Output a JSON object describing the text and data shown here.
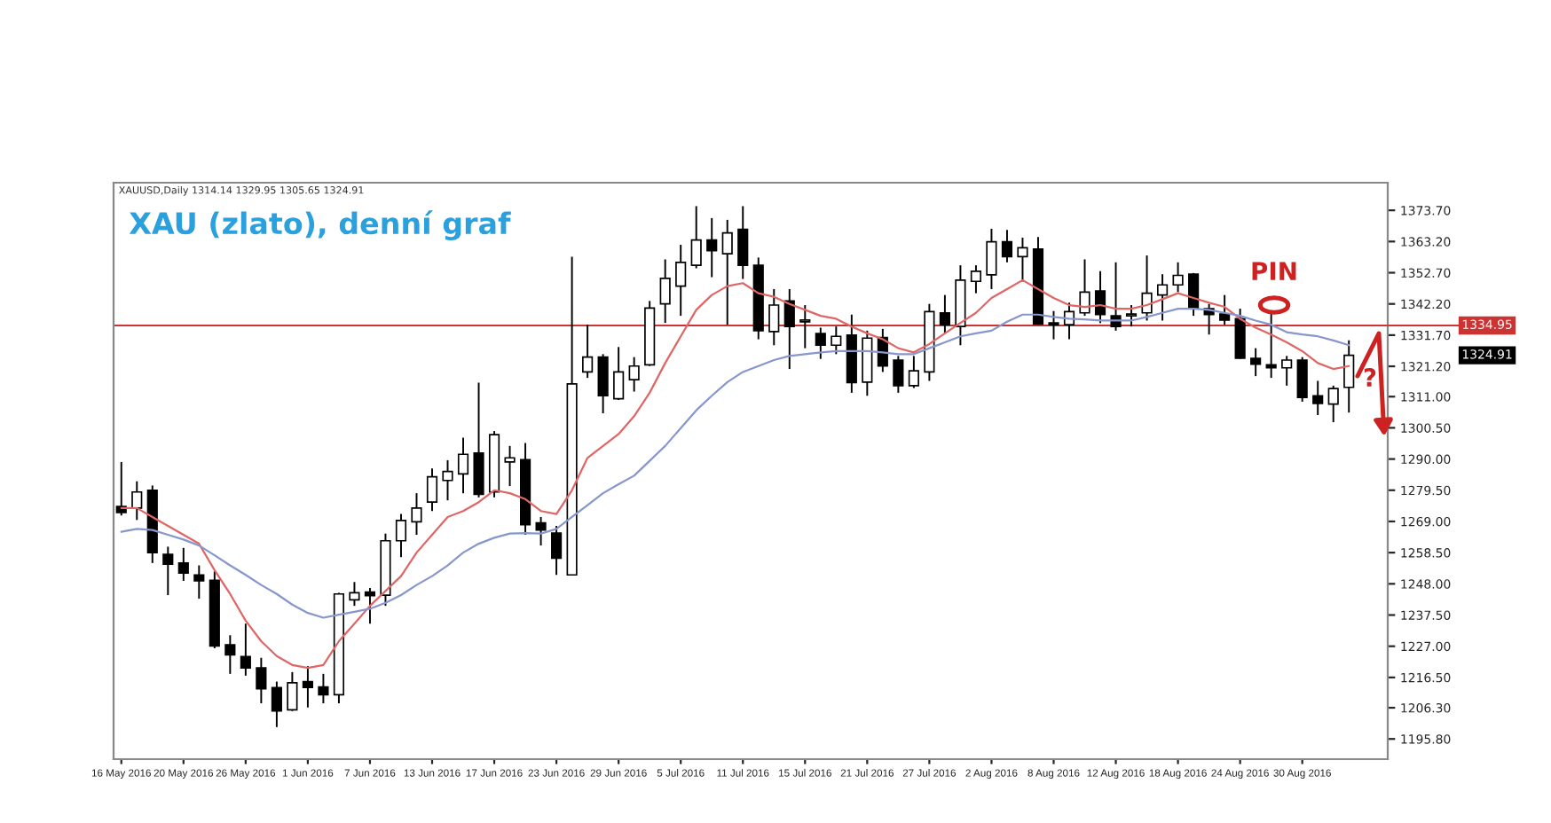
{
  "chart_data": {
    "type": "candlestick",
    "title": "XAU (zlato), denní graf",
    "annotations": [
      "XAUUSD,Daily 1314.14 1329.95 1305.65 1324.91",
      "PIN",
      "?",
      "1324.91"
    ],
    "categories": [
      "16 May 2016",
      null,
      null,
      null,
      "20 May 2016",
      null,
      null,
      null,
      "26 May 2016",
      null,
      null,
      null,
      "1 Jun 2016",
      null,
      null,
      null,
      "7 Jun 2016",
      null,
      null,
      null,
      "13 Jun 2016",
      null,
      null,
      null,
      "17 Jun 2016",
      null,
      null,
      null,
      "23 Jun 2016",
      null,
      null,
      null,
      "29 Jun 2016",
      null,
      null,
      null,
      "5 Jul 2016",
      null,
      null,
      null,
      "11 Jul 2016",
      null,
      null,
      null,
      "15 Jul 2016",
      null,
      null,
      null,
      "21 Jul 2016",
      null,
      null,
      null,
      "27 Jul 2016",
      null,
      null,
      null,
      "2 Aug 2016",
      null,
      null,
      null,
      "8 Aug 2016",
      null,
      null,
      null,
      "12 Aug 2016",
      null,
      null,
      null,
      "18 Aug 2016",
      null,
      null,
      null,
      "24 Aug 2016",
      null,
      null,
      null,
      "30 Aug 2016",
      null,
      null,
      null
    ],
    "ohlc": [
      [
        1274,
        1289,
        1271,
        1272
      ],
      [
        1273.5,
        1282.5,
        1269.5,
        1278.9
      ],
      [
        1279.5,
        1281.1,
        1255.0,
        1258.5
      ],
      [
        1257.9,
        1260.5,
        1244.2,
        1254.6
      ],
      [
        1255.0,
        1260.1,
        1249.0,
        1251.6
      ],
      [
        1251.0,
        1254.2,
        1243.0,
        1249.0
      ],
      [
        1249.2,
        1252.2,
        1226.3,
        1227.1
      ],
      [
        1227.5,
        1230.7,
        1217.7,
        1224.1
      ],
      [
        1223.5,
        1234.6,
        1217.1,
        1219.7
      ],
      [
        1219.7,
        1223.1,
        1207.8,
        1212.7
      ],
      [
        1213.1,
        1215.1,
        1199.8,
        1205.2
      ],
      [
        1205.6,
        1218.3,
        1205.2,
        1214.7
      ],
      [
        1215.1,
        1220.3,
        1206.4,
        1213.1
      ],
      [
        1213.3,
        1217.7,
        1207.8,
        1210.7
      ],
      [
        1210.7,
        1245.0,
        1207.8,
        1244.6
      ],
      [
        1242.6,
        1248.6,
        1240.6,
        1245.0
      ],
      [
        1245.2,
        1246.6,
        1234.6,
        1244.0
      ],
      [
        1244.2,
        1264.9,
        1240.6,
        1262.5
      ],
      [
        1262.5,
        1271.5,
        1257.0,
        1269.3
      ],
      [
        1268.9,
        1278.5,
        1264.5,
        1273.5
      ],
      [
        1275.5,
        1286.8,
        1272.5,
        1284.0
      ],
      [
        1282.8,
        1289.6,
        1276.1,
        1285.8
      ],
      [
        1285.0,
        1297.2,
        1278.5,
        1291.6
      ],
      [
        1292.0,
        1315.7,
        1277.1,
        1278.1
      ],
      [
        1278.9,
        1299.4,
        1277.1,
        1298.2
      ],
      [
        1289.0,
        1294.4,
        1280.9,
        1290.4
      ],
      [
        1289.8,
        1295.4,
        1264.5,
        1267.9
      ],
      [
        1268.5,
        1270.5,
        1260.9,
        1266.1
      ],
      [
        1265.1,
        1267.5,
        1251.0,
        1256.6
      ],
      [
        1251.0,
        1358.1,
        1251.0,
        1315.3
      ],
      [
        1319.3,
        1335.2,
        1317.3,
        1324.3
      ],
      [
        1324.3,
        1325.3,
        1305.4,
        1311.3
      ],
      [
        1310.3,
        1327.7,
        1309.9,
        1319.3
      ],
      [
        1316.7,
        1324.3,
        1312.7,
        1321.3
      ],
      [
        1321.7,
        1343.2,
        1321.3,
        1340.8
      ],
      [
        1342.2,
        1357.2,
        1335.8,
        1350.8
      ],
      [
        1348.2,
        1362.1,
        1338.2,
        1356.2
      ],
      [
        1355.2,
        1375.1,
        1354.2,
        1363.7
      ],
      [
        1363.7,
        1371.1,
        1351.2,
        1360.1
      ],
      [
        1359.1,
        1370.5,
        1335.2,
        1366.1
      ],
      [
        1367.3,
        1375.1,
        1350.6,
        1355.2
      ],
      [
        1355.2,
        1357.8,
        1330.3,
        1333.2
      ],
      [
        1332.9,
        1347.2,
        1328.3,
        1341.8
      ],
      [
        1343.2,
        1347.2,
        1320.3,
        1334.6
      ],
      [
        1336.2,
        1341.8,
        1327.3,
        1336.8
      ],
      [
        1332.2,
        1334.2,
        1323.7,
        1328.3
      ],
      [
        1328.3,
        1334.6,
        1325.3,
        1331.3
      ],
      [
        1331.7,
        1338.6,
        1312.3,
        1315.7
      ],
      [
        1315.9,
        1333.2,
        1311.3,
        1330.7
      ],
      [
        1330.9,
        1333.8,
        1319.3,
        1321.3
      ],
      [
        1323.3,
        1324.7,
        1312.3,
        1314.7
      ],
      [
        1314.7,
        1324.7,
        1313.9,
        1319.7
      ],
      [
        1319.3,
        1342.2,
        1316.3,
        1339.6
      ],
      [
        1339.2,
        1345.2,
        1332.2,
        1335.2
      ],
      [
        1334.6,
        1355.2,
        1328.3,
        1350.2
      ],
      [
        1349.8,
        1355.2,
        1345.8,
        1353.2
      ],
      [
        1352.0,
        1367.5,
        1347.2,
        1363.1
      ],
      [
        1363.1,
        1367.1,
        1356.2,
        1358.1
      ],
      [
        1358.1,
        1364.5,
        1350.2,
        1361.1
      ],
      [
        1360.7,
        1364.7,
        1335.2,
        1335.4
      ],
      [
        1335.8,
        1339.8,
        1330.3,
        1335.2
      ],
      [
        1335.2,
        1342.6,
        1330.3,
        1339.6
      ],
      [
        1339.2,
        1357.2,
        1338.2,
        1346.2
      ],
      [
        1346.6,
        1353.2,
        1335.8,
        1338.6
      ],
      [
        1338.2,
        1356.2,
        1333.2,
        1334.6
      ],
      [
        1338.2,
        1341.8,
        1334.6,
        1338.8
      ],
      [
        1339.2,
        1358.5,
        1336.6,
        1345.8
      ],
      [
        1345.2,
        1352.2,
        1336.6,
        1348.6
      ],
      [
        1348.6,
        1356.2,
        1346.2,
        1351.8
      ],
      [
        1352.2,
        1352.6,
        1338.2,
        1340.6
      ],
      [
        1340.6,
        1342.2,
        1331.9,
        1338.6
      ],
      [
        1338.8,
        1345.2,
        1335.2,
        1336.8
      ],
      [
        1337.2,
        1340.6,
        1323.7,
        1323.9
      ],
      [
        1323.9,
        1327.3,
        1317.9,
        1321.9
      ],
      [
        1321.7,
        1339.2,
        1317.3,
        1320.7
      ],
      [
        1320.7,
        1324.7,
        1314.7,
        1323.3
      ],
      [
        1323.3,
        1324.3,
        1309.3,
        1310.7
      ],
      [
        1311.3,
        1316.3,
        1304.8,
        1308.7
      ],
      [
        1308.5,
        1314.7,
        1302.4,
        1313.7
      ],
      [
        1314.14,
        1329.95,
        1305.65,
        1324.91
      ]
    ],
    "series": [
      {
        "type": "line",
        "color": "#e06666",
        "values": [
          1273.5,
          1273.5,
          1270.5,
          1267.5,
          1264.5,
          1261.5,
          1252.6,
          1244.6,
          1235.6,
          1228.7,
          1223.7,
          1220.7,
          1219.7,
          1220.7,
          1228.7,
          1234.6,
          1240.6,
          1245.6,
          1250.6,
          1258.5,
          1264.5,
          1270.5,
          1272.5,
          1275.5,
          1279.5,
          1278.5,
          1276.5,
          1272.5,
          1271.5,
          1279.5,
          1290.4,
          1294.4,
          1298.4,
          1304.4,
          1312.3,
          1322.3,
          1331.3,
          1340.2,
          1345.2,
          1348.2,
          1349.2,
          1345.8,
          1344.6,
          1342.2,
          1340.2,
          1338.2,
          1337.2,
          1334.6,
          1332.3,
          1330.3,
          1327.3,
          1325.9,
          1328.7,
          1332.3,
          1335.8,
          1339.2,
          1344.2,
          1347.2,
          1350.2,
          1347.2,
          1344.2,
          1341.8,
          1341.2,
          1341.8,
          1340.6,
          1340.6,
          1341.8,
          1343.8,
          1345.8,
          1344.2,
          1342.6,
          1341.2,
          1337.2,
          1334.2,
          1331.9,
          1329.3,
          1326.3,
          1322.3,
          1320.3,
          1321.3
        ]
      },
      {
        "type": "line",
        "color": "#8796cc",
        "values": [
          1265.5,
          1266.5,
          1266.1,
          1264.5,
          1262.9,
          1260.9,
          1257.6,
          1254.2,
          1251.0,
          1247.6,
          1244.6,
          1241.0,
          1238.2,
          1236.6,
          1237.6,
          1238.6,
          1239.6,
          1241.6,
          1244.2,
          1247.6,
          1250.6,
          1254.2,
          1258.5,
          1261.5,
          1263.5,
          1264.9,
          1265.1,
          1264.9,
          1266.5,
          1270.5,
          1274.5,
          1278.5,
          1281.5,
          1284.4,
          1289.4,
          1294.4,
          1300.4,
          1306.4,
          1311.3,
          1315.9,
          1319.3,
          1321.3,
          1323.3,
          1324.7,
          1325.3,
          1325.9,
          1326.3,
          1326.3,
          1326.3,
          1325.9,
          1325.3,
          1325.3,
          1327.3,
          1329.3,
          1331.3,
          1332.3,
          1333.2,
          1336.2,
          1338.6,
          1338.6,
          1337.8,
          1337.2,
          1337.0,
          1336.6,
          1336.6,
          1336.6,
          1337.8,
          1339.2,
          1340.6,
          1340.6,
          1340.2,
          1339.2,
          1338.2,
          1336.6,
          1335.2,
          1332.7,
          1331.9,
          1331.3,
          1329.9,
          1328.3
        ]
      }
    ],
    "ylim": [
      1189,
      1383
    ],
    "yticks": [
      {
        "value": 1195.8,
        "label": "1195.80"
      },
      {
        "value": 1206.3,
        "label": "1206.30"
      },
      {
        "value": 1216.5,
        "label": "1216.50"
      },
      {
        "value": 1227.0,
        "label": "1227.00"
      },
      {
        "value": 1237.5,
        "label": "1237.50"
      },
      {
        "value": 1248.0,
        "label": "1248.00"
      },
      {
        "value": 1258.5,
        "label": "1258.50"
      },
      {
        "value": 1269.0,
        "label": "1269.00"
      },
      {
        "value": 1279.5,
        "label": "1279.50"
      },
      {
        "value": 1290.0,
        "label": "1290.00"
      },
      {
        "value": 1300.5,
        "label": "1300.50"
      },
      {
        "value": 1311.0,
        "label": "1311.00"
      },
      {
        "value": 1321.2,
        "label": "1321.20"
      },
      {
        "value": 1331.7,
        "label": "1331.70"
      },
      {
        "value": 1342.2,
        "label": "1342.20"
      },
      {
        "value": 1352.7,
        "label": "1352.70"
      },
      {
        "value": 1363.2,
        "label": "1363.20"
      },
      {
        "value": 1373.7,
        "label": "1373.70"
      }
    ],
    "ref_lines": [
      {
        "axis": "y",
        "value": 1334.95,
        "label": "1334.95",
        "color": "#cc3333"
      }
    ]
  }
}
